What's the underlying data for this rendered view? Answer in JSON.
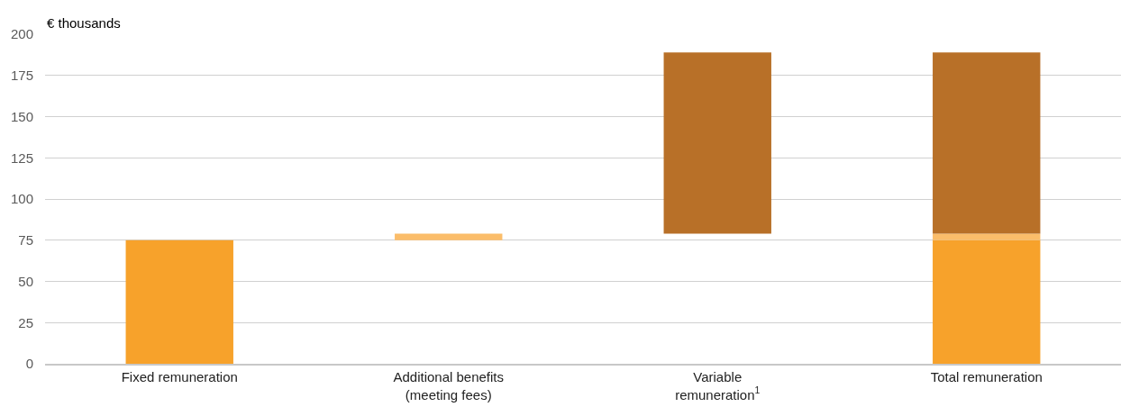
{
  "chart_data": {
    "type": "bar",
    "ylabel": "€ thousands",
    "categories": [
      "Fixed remuneration",
      "Additional benefits\n(meeting fees)",
      "Variable\nremuneration$^{1}$",
      "Total remuneration"
    ],
    "series": [
      {
        "color": "#f7a22b",
        "values": [
          75,
          null,
          null,
          75
        ],
        "base": [
          0,
          null,
          null,
          0
        ]
      },
      {
        "color": "#fbbd6a",
        "values": [
          null,
          4,
          null,
          4
        ],
        "base": [
          null,
          75,
          null,
          75
        ]
      },
      {
        "color": "#b87028",
        "values": [
          null,
          null,
          110,
          110
        ],
        "base": [
          null,
          null,
          79,
          79
        ]
      }
    ],
    "ylim": [
      0,
      200
    ],
    "yticks": [
      0,
      25,
      50,
      75,
      100,
      125,
      150,
      175,
      200
    ],
    "grid": "y"
  }
}
